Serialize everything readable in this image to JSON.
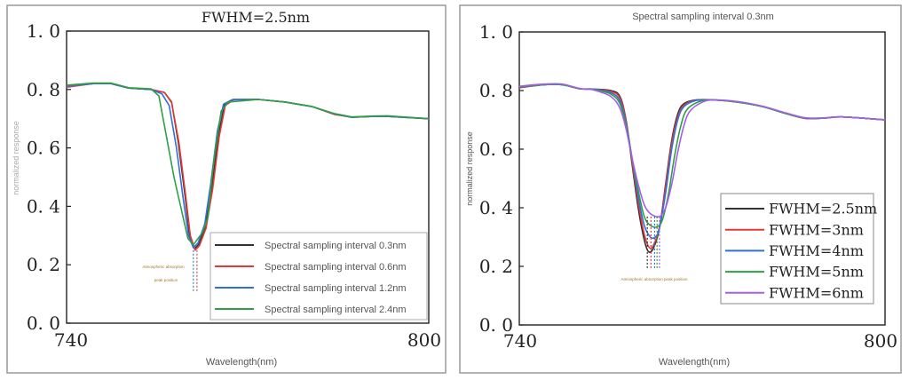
{
  "chart_data": [
    {
      "type": "line",
      "title": "FWHM=2.5nm",
      "xlabel": "Wavelength(nm)",
      "ylabel": "normalized response",
      "xlim": [
        740,
        800
      ],
      "ylim": [
        0.0,
        1.0
      ],
      "xticks": [
        "740",
        "800"
      ],
      "yticks": [
        "0.0",
        "0.2",
        "0.4",
        "0.6",
        "0.8",
        "1.0"
      ],
      "legend_position": "bottom-right",
      "annotation": [
        "Atmospheric absorption",
        "peak position"
      ],
      "peak_marker_x": [
        761.0,
        761.6
      ],
      "peak_marker_colors": [
        "#3a7bd5",
        "#d9534f"
      ],
      "peak_marker_yrange": [
        0.11,
        0.25
      ],
      "series": [
        {
          "name": "Spectral sampling interval 0.3nm",
          "color": "#333333",
          "x": [
            740,
            744.4,
            747.4,
            750.3,
            754,
            756.2,
            757.4,
            758.5,
            759.6,
            760.4,
            761.2,
            761.9,
            763,
            764.1,
            765.2,
            766.2,
            767.6,
            771.8,
            776.2,
            780.6,
            784.3,
            787.2,
            790.9,
            793.1,
            800
          ],
          "y": [
            0.811,
            0.82,
            0.82,
            0.805,
            0.8,
            0.79,
            0.757,
            0.62,
            0.44,
            0.3,
            0.255,
            0.27,
            0.33,
            0.47,
            0.65,
            0.75,
            0.766,
            0.766,
            0.757,
            0.742,
            0.717,
            0.705,
            0.708,
            0.708,
            0.7
          ]
        },
        {
          "name": "Spectral sampling interval 0.6nm",
          "color": "#e53935",
          "x": [
            740,
            744.4,
            747.4,
            750.3,
            754,
            756.2,
            757.4,
            758.6,
            759.7,
            760.5,
            761.3,
            762,
            763.1,
            764.2,
            765.3,
            766.3,
            767.7,
            771.8,
            776.2,
            780.6,
            784.3,
            787.2,
            790.9,
            793.1,
            800
          ],
          "y": [
            0.808,
            0.82,
            0.82,
            0.805,
            0.8,
            0.79,
            0.755,
            0.62,
            0.44,
            0.3,
            0.25,
            0.265,
            0.325,
            0.46,
            0.64,
            0.745,
            0.765,
            0.766,
            0.757,
            0.742,
            0.715,
            0.705,
            0.708,
            0.708,
            0.7
          ]
        },
        {
          "name": "Spectral sampling interval 1.2nm",
          "color": "#2f6fe0",
          "x": [
            740,
            744.4,
            747.4,
            750.3,
            754,
            755.8,
            757,
            758.2,
            759.3,
            760.2,
            761,
            761.8,
            762.9,
            763.9,
            765,
            766,
            767.4,
            771.8,
            776.2,
            780.6,
            784.3,
            787.2,
            790.9,
            793.1,
            800
          ],
          "y": [
            0.812,
            0.82,
            0.82,
            0.805,
            0.8,
            0.785,
            0.745,
            0.6,
            0.43,
            0.3,
            0.258,
            0.275,
            0.34,
            0.48,
            0.66,
            0.75,
            0.765,
            0.766,
            0.757,
            0.742,
            0.717,
            0.705,
            0.708,
            0.708,
            0.7
          ]
        },
        {
          "name": "Spectral sampling interval 2.4nm",
          "color": "#2ea043",
          "x": [
            740,
            744.4,
            747.4,
            750.3,
            754,
            755.3,
            757.8,
            760.1,
            761,
            762.5,
            763.4,
            764.3,
            765.6,
            766.8,
            771.8,
            776.2,
            780.6,
            784.3,
            787.2,
            790.9,
            793.1,
            800
          ],
          "y": [
            0.815,
            0.822,
            0.822,
            0.806,
            0.802,
            0.778,
            0.5,
            0.29,
            0.268,
            0.31,
            0.36,
            0.54,
            0.726,
            0.757,
            0.766,
            0.757,
            0.742,
            0.718,
            0.706,
            0.709,
            0.71,
            0.7
          ]
        }
      ]
    },
    {
      "type": "line",
      "title": "Spectral sampling interval 0.3nm",
      "xlabel": "Wavelength(nm)",
      "ylabel": "normalized response",
      "xlim": [
        740,
        800
      ],
      "ylim": [
        0.0,
        1.0
      ],
      "xticks": [
        "740",
        "800"
      ],
      "yticks": [
        "0.0",
        "0.2",
        "0.4",
        "0.6",
        "0.8",
        "1.0"
      ],
      "legend_position": "right",
      "annotation": [
        "Atmospheric absorption peak position"
      ],
      "peak_marker_x": [
        761.0,
        761.6,
        762.2,
        762.6,
        763.0
      ],
      "peak_marker_yrange": [
        0.19,
        0.37
      ],
      "series": [
        {
          "name": "FWHM=2.5nm",
          "color": "#333333",
          "x": [
            740,
            744,
            747,
            750,
            752,
            755,
            756.5,
            757.5,
            758.5,
            759.5,
            760.5,
            761.2,
            762,
            763,
            764,
            765,
            766,
            767,
            769,
            772,
            776,
            780,
            784,
            787,
            790,
            793,
            800
          ],
          "y": [
            0.81,
            0.82,
            0.82,
            0.806,
            0.805,
            0.8,
            0.78,
            0.7,
            0.55,
            0.4,
            0.29,
            0.25,
            0.262,
            0.33,
            0.48,
            0.63,
            0.72,
            0.755,
            0.768,
            0.768,
            0.76,
            0.745,
            0.72,
            0.705,
            0.706,
            0.71,
            0.7
          ]
        },
        {
          "name": "FWHM=3nm",
          "color": "#e53935",
          "x": [
            740,
            744,
            747,
            750,
            752,
            755,
            756.5,
            757.5,
            758.5,
            759.5,
            760.5,
            761.3,
            762,
            763,
            764,
            765,
            766,
            767,
            769,
            772,
            776,
            780,
            784,
            787,
            790,
            793,
            800
          ],
          "y": [
            0.81,
            0.82,
            0.82,
            0.806,
            0.805,
            0.797,
            0.775,
            0.7,
            0.56,
            0.42,
            0.31,
            0.265,
            0.272,
            0.335,
            0.47,
            0.62,
            0.71,
            0.75,
            0.767,
            0.768,
            0.76,
            0.745,
            0.72,
            0.705,
            0.706,
            0.71,
            0.7
          ]
        },
        {
          "name": "FWHM=4nm",
          "color": "#2f6fe0",
          "x": [
            740,
            744,
            747,
            750,
            752,
            755,
            756.5,
            757.5,
            758.5,
            759.5,
            760.5,
            761.5,
            762.3,
            763,
            764,
            765,
            766,
            767,
            769,
            772,
            776,
            780,
            784,
            787,
            790,
            793,
            800
          ],
          "y": [
            0.812,
            0.82,
            0.82,
            0.806,
            0.805,
            0.793,
            0.765,
            0.69,
            0.57,
            0.44,
            0.34,
            0.3,
            0.3,
            0.33,
            0.45,
            0.6,
            0.7,
            0.745,
            0.766,
            0.768,
            0.76,
            0.745,
            0.72,
            0.706,
            0.706,
            0.71,
            0.7
          ]
        },
        {
          "name": "FWHM=5nm",
          "color": "#2ea043",
          "x": [
            740,
            744,
            747,
            750,
            752,
            755,
            756.5,
            757.5,
            758.5,
            759.5,
            760.5,
            761.5,
            762.6,
            763.5,
            764.5,
            765.5,
            766.5,
            767.5,
            769.5,
            772,
            776,
            780,
            784,
            787,
            790,
            793,
            800
          ],
          "y": [
            0.813,
            0.82,
            0.82,
            0.806,
            0.804,
            0.788,
            0.755,
            0.68,
            0.57,
            0.46,
            0.37,
            0.34,
            0.335,
            0.36,
            0.45,
            0.58,
            0.68,
            0.735,
            0.762,
            0.768,
            0.76,
            0.745,
            0.72,
            0.706,
            0.706,
            0.71,
            0.7
          ]
        },
        {
          "name": "FWHM=6nm",
          "color": "#a65ee8",
          "x": [
            740,
            744,
            747,
            750,
            752,
            755,
            756.5,
            757.5,
            758.5,
            759.5,
            760.5,
            761.5,
            763,
            764,
            765,
            766,
            767,
            768,
            770,
            772,
            776,
            780,
            784,
            787,
            790,
            793,
            800
          ],
          "y": [
            0.815,
            0.822,
            0.822,
            0.807,
            0.803,
            0.78,
            0.74,
            0.67,
            0.57,
            0.48,
            0.41,
            0.38,
            0.37,
            0.4,
            0.48,
            0.59,
            0.68,
            0.73,
            0.76,
            0.768,
            0.762,
            0.746,
            0.722,
            0.707,
            0.707,
            0.71,
            0.7
          ]
        }
      ]
    }
  ]
}
